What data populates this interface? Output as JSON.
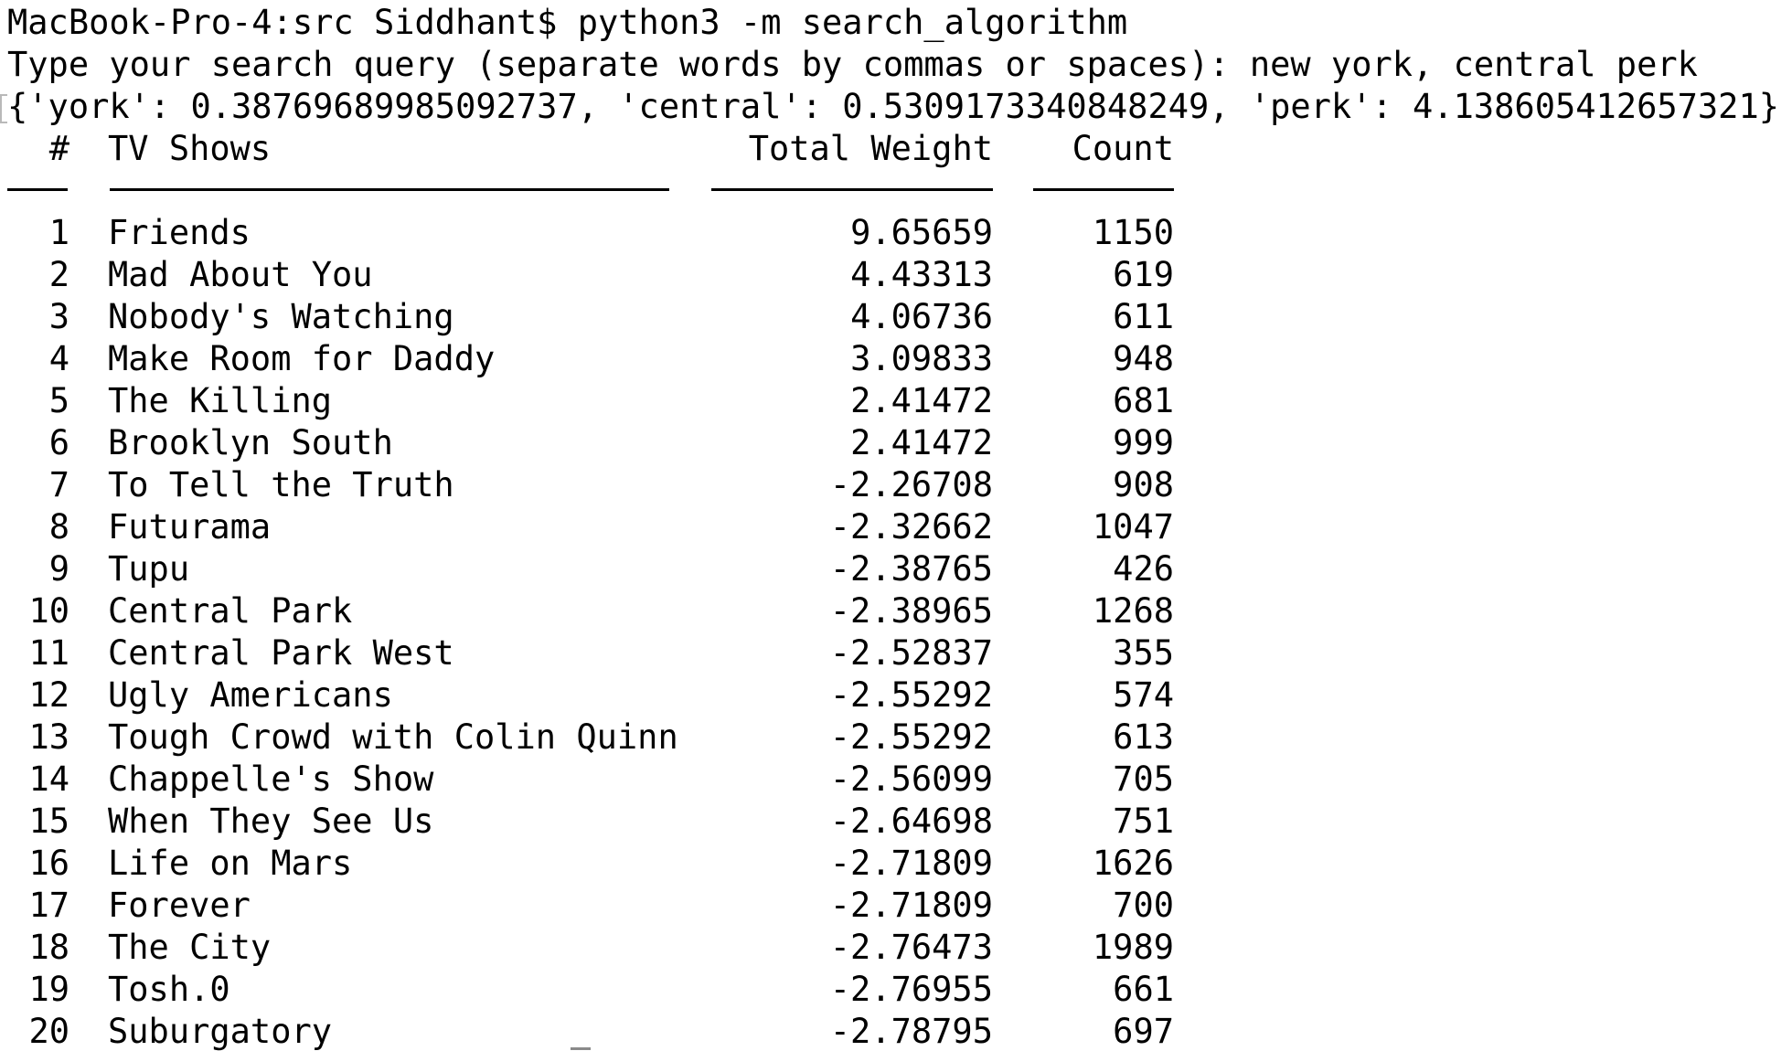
{
  "terminal": {
    "prompt_line": "MacBook-Pro-4:src Siddhant$ python3 -m search_algorithm",
    "query_line": "Type your search query (separate words by commas or spaces): new york, central perk",
    "weights_line": "{'york': 0.38769689985092737, 'central': 0.5309173340848249, 'perk': 4.138605412657321}"
  },
  "table": {
    "headers": {
      "index": "#",
      "show": "TV Shows",
      "weight": "Total Weight",
      "count": "Count"
    },
    "rows": [
      {
        "index": "1",
        "show": "Friends",
        "weight": "9.65659",
        "count": "1150"
      },
      {
        "index": "2",
        "show": "Mad About You",
        "weight": "4.43313",
        "count": "619"
      },
      {
        "index": "3",
        "show": "Nobody's Watching",
        "weight": "4.06736",
        "count": "611"
      },
      {
        "index": "4",
        "show": "Make Room for Daddy",
        "weight": "3.09833",
        "count": "948"
      },
      {
        "index": "5",
        "show": "The Killing",
        "weight": "2.41472",
        "count": "681"
      },
      {
        "index": "6",
        "show": "Brooklyn South",
        "weight": "2.41472",
        "count": "999"
      },
      {
        "index": "7",
        "show": "To Tell the Truth",
        "weight": "-2.26708",
        "count": "908"
      },
      {
        "index": "8",
        "show": "Futurama",
        "weight": "-2.32662",
        "count": "1047"
      },
      {
        "index": "9",
        "show": "Tupu",
        "weight": "-2.38765",
        "count": "426"
      },
      {
        "index": "10",
        "show": "Central Park",
        "weight": "-2.38965",
        "count": "1268"
      },
      {
        "index": "11",
        "show": "Central Park West",
        "weight": "-2.52837",
        "count": "355"
      },
      {
        "index": "12",
        "show": "Ugly Americans",
        "weight": "-2.55292",
        "count": "574"
      },
      {
        "index": "13",
        "show": "Tough Crowd with Colin Quinn",
        "weight": "-2.55292",
        "count": "613"
      },
      {
        "index": "14",
        "show": "Chappelle's Show",
        "weight": "-2.56099",
        "count": "705"
      },
      {
        "index": "15",
        "show": "When They See Us",
        "weight": "-2.64698",
        "count": "751"
      },
      {
        "index": "16",
        "show": "Life on Mars",
        "weight": "-2.71809",
        "count": "1626"
      },
      {
        "index": "17",
        "show": "Forever",
        "weight": "-2.71809",
        "count": "700"
      },
      {
        "index": "18",
        "show": "The City",
        "weight": "-2.76473",
        "count": "1989"
      },
      {
        "index": "19",
        "show": "Tosh.0",
        "weight": "-2.76955",
        "count": "661"
      },
      {
        "index": "20",
        "show": "Suburgatory",
        "weight": "-2.78795",
        "count": "697"
      }
    ]
  }
}
